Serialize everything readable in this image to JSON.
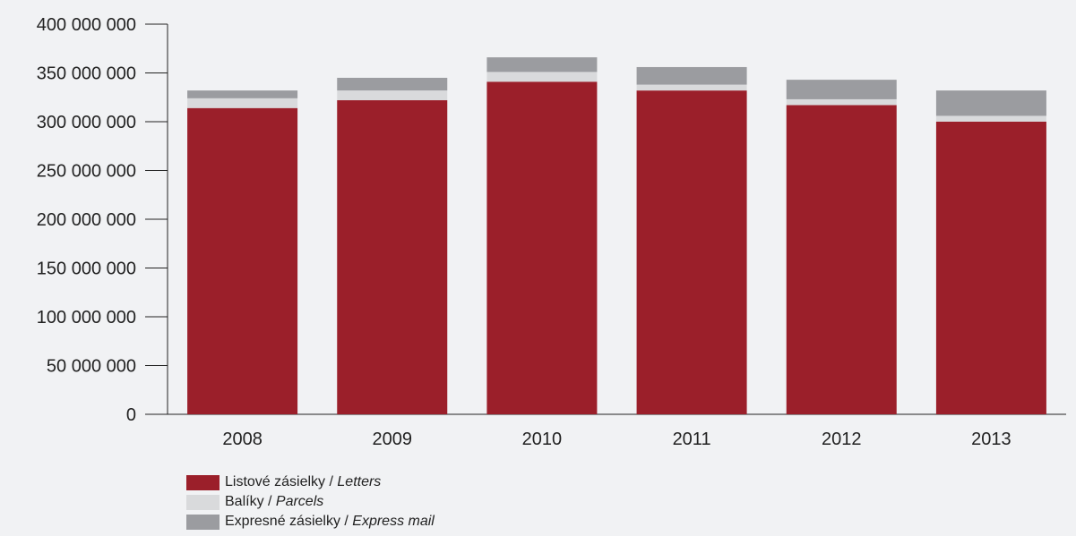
{
  "chart_data": {
    "type": "bar",
    "stacked": true,
    "categories": [
      "2008",
      "2009",
      "2010",
      "2011",
      "2012",
      "2013"
    ],
    "series": [
      {
        "name": "Listové zásielky / Letters",
        "name_main": "Listové zásielky / ",
        "name_italic": "Letters",
        "color": "#9b1f2a",
        "values": [
          314000000,
          322000000,
          341000000,
          332000000,
          317000000,
          300000000
        ]
      },
      {
        "name": "Balíky / Parcels",
        "name_main": "Balíky / ",
        "name_italic": "Parcels",
        "color": "#d9dadc",
        "values": [
          10000000,
          10000000,
          10000000,
          6000000,
          6000000,
          6000000
        ]
      },
      {
        "name": "Expresné zásielky / Express mail",
        "name_main": "Expresné zásielky / ",
        "name_italic": "Express mail",
        "color": "#9b9ca0",
        "values": [
          8000000,
          13000000,
          15000000,
          18000000,
          20000000,
          26000000
        ]
      }
    ],
    "ylim": [
      0,
      400000000
    ],
    "yticks": [
      "0",
      "50 000 000",
      "100 000 000",
      "150 000 000",
      "200 000 000",
      "250 000 000",
      "300 000 000",
      "350 000 000",
      "400 000 000"
    ],
    "ytick_values": [
      0,
      50000000,
      100000000,
      150000000,
      200000000,
      250000000,
      300000000,
      350000000,
      400000000
    ],
    "title": "",
    "xlabel": "",
    "ylabel": "",
    "grid": false,
    "legend_position": "bottom-left"
  }
}
